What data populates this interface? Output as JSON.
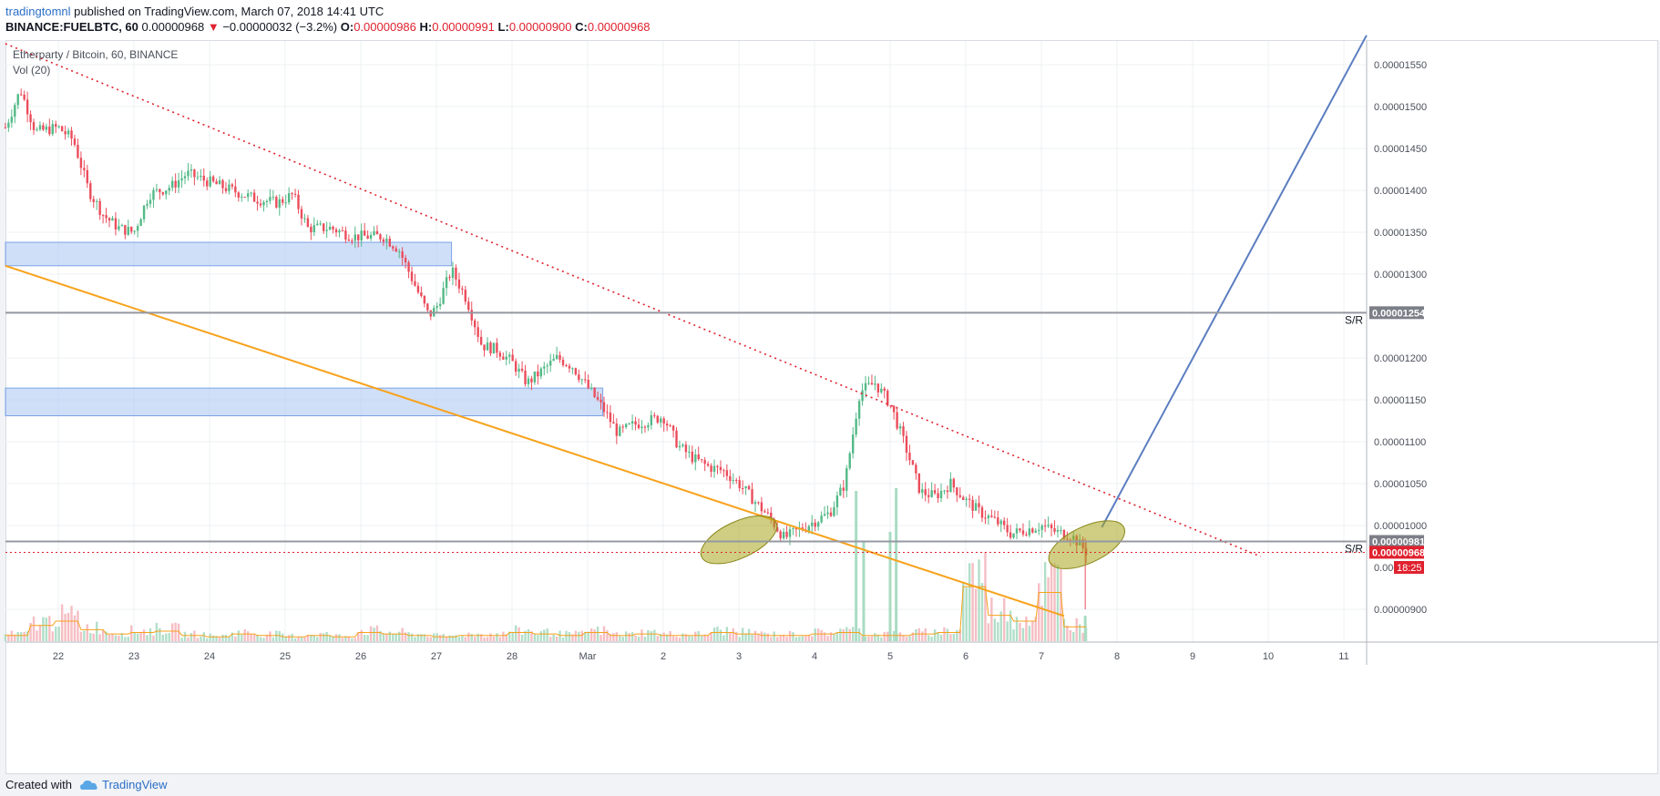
{
  "header": {
    "author": "tradingtomnl",
    "published": "published on TradingView.com, March 07, 2018 14:41 UTC",
    "symbol": "BINANCE:FUELBTC, 60",
    "price": "0.00000968",
    "arrow": "▼",
    "change": "−0.00000032 (−3.2%)",
    "o_label": "O:",
    "o_value": "0.00000986",
    "h_label": "H:",
    "h_value": "0.00000991",
    "l_label": "L:",
    "l_value": "0.00000900",
    "c_label": "C:",
    "c_value": "0.00000968"
  },
  "legend": {
    "title": "Etherparty / Bitcoin, 60, BINANCE",
    "volume": "Vol (20)"
  },
  "footer": {
    "created": "Created with",
    "brand": "TradingView"
  },
  "colors": {
    "up": "#53b987",
    "down": "#eb4d5c",
    "trend_dotted": "#e0212e",
    "trend_orange": "#f7a21b",
    "projection": "#5b7dc0",
    "zone": "#a9c5f2",
    "ellipse": "#a8a51e",
    "sr_line": "#9598a1"
  },
  "chart_data": {
    "type": "candlestick",
    "title": "Etherparty / Bitcoin, 60, BINANCE",
    "x_ticks": [
      "22",
      "23",
      "24",
      "25",
      "26",
      "27",
      "28",
      "Mar",
      "2",
      "3",
      "4",
      "5",
      "6",
      "7",
      "8",
      "9",
      "10",
      "11"
    ],
    "y_ticks": [
      "0.00001550",
      "0.00001500",
      "0.00001450",
      "0.00001400",
      "0.00001350",
      "0.00001300",
      "0.00001200",
      "0.00001150",
      "0.00001100",
      "0.00001050",
      "0.00001000",
      "0.00000900"
    ],
    "y_tick_values": [
      1550,
      1500,
      1450,
      1400,
      1350,
      1300,
      1200,
      1150,
      1100,
      1050,
      1000,
      900
    ],
    "ylim": [
      870,
      1585
    ],
    "xlim_days": [
      21.3,
      39.4
    ],
    "price_path": [
      [
        21.3,
        1475
      ],
      [
        21.5,
        1520
      ],
      [
        21.7,
        1470
      ],
      [
        22.0,
        1475
      ],
      [
        22.2,
        1460
      ],
      [
        22.4,
        1400
      ],
      [
        22.6,
        1370
      ],
      [
        22.8,
        1355
      ],
      [
        23.0,
        1350
      ],
      [
        23.2,
        1395
      ],
      [
        23.5,
        1405
      ],
      [
        23.7,
        1420
      ],
      [
        24.0,
        1410
      ],
      [
        24.3,
        1400
      ],
      [
        24.6,
        1390
      ],
      [
        24.9,
        1385
      ],
      [
        25.1,
        1395
      ],
      [
        25.3,
        1355
      ],
      [
        25.6,
        1355
      ],
      [
        25.9,
        1345
      ],
      [
        26.1,
        1345
      ],
      [
        26.3,
        1345
      ],
      [
        26.5,
        1330
      ],
      [
        26.7,
        1290
      ],
      [
        26.9,
        1250
      ],
      [
        27.0,
        1260
      ],
      [
        27.2,
        1305
      ],
      [
        27.4,
        1270
      ],
      [
        27.6,
        1215
      ],
      [
        27.8,
        1210
      ],
      [
        28.0,
        1195
      ],
      [
        28.2,
        1170
      ],
      [
        28.4,
        1185
      ],
      [
        28.6,
        1200
      ],
      [
        28.8,
        1190
      ],
      [
        29.0,
        1165
      ],
      [
        29.2,
        1140
      ],
      [
        29.4,
        1110
      ],
      [
        29.6,
        1120
      ],
      [
        29.8,
        1125
      ],
      [
        30.0,
        1130
      ],
      [
        30.2,
        1095
      ],
      [
        30.4,
        1080
      ],
      [
        30.6,
        1070
      ],
      [
        30.8,
        1065
      ],
      [
        31.0,
        1050
      ],
      [
        31.2,
        1030
      ],
      [
        31.4,
        1010
      ],
      [
        31.6,
        985
      ],
      [
        31.8,
        995
      ],
      [
        32.0,
        1005
      ],
      [
        32.2,
        1015
      ],
      [
        32.4,
        1050
      ],
      [
        32.6,
        1160
      ],
      [
        32.8,
        1170
      ],
      [
        33.0,
        1145
      ],
      [
        33.2,
        1095
      ],
      [
        33.4,
        1040
      ],
      [
        33.6,
        1035
      ],
      [
        33.8,
        1050
      ],
      [
        34.0,
        1030
      ],
      [
        34.2,
        1015
      ],
      [
        34.4,
        1005
      ],
      [
        34.6,
        990
      ],
      [
        34.8,
        995
      ],
      [
        35.0,
        1000
      ],
      [
        35.2,
        992
      ],
      [
        35.4,
        988
      ],
      [
        35.6,
        968
      ]
    ],
    "series": [
      {
        "name": "Vol (20)",
        "values_relative": [
          0.2,
          0.55,
          0.7,
          0.4,
          0.25,
          0.3,
          0.35,
          0.2,
          0.15,
          0.25,
          0.2,
          0.15,
          0.2,
          0.15,
          0.3,
          0.25,
          0.2,
          0.15,
          0.2,
          0.2,
          0.3,
          0.25,
          0.2,
          0.3,
          0.2,
          0.25,
          0.2,
          0.2,
          0.3,
          0.25,
          0.2,
          0.2,
          0.25,
          0.3,
          0.2,
          0.2,
          0.25,
          0.3,
          1.9,
          0.9,
          0.7,
          1.7,
          0.5,
          0.35,
          0.3,
          0.25,
          0.2,
          0.25,
          0.3,
          0.35,
          0.25,
          0.2
        ]
      }
    ],
    "annotations": {
      "sr_levels": [
        {
          "label": "S/R",
          "value": 1254,
          "badge": "0.00001254"
        },
        {
          "label": "S/R",
          "value": 981,
          "badge": "0.00000981"
        }
      ],
      "last_price": {
        "value": 968,
        "badge": "0.00000968"
      },
      "countdown": {
        "value": 950,
        "badge_prefix": "0.000",
        "badge": "18:25"
      },
      "zones": [
        {
          "from_day": 21.3,
          "to_day": 27.2,
          "low": 1310,
          "high": 1338
        },
        {
          "from_day": 21.3,
          "to_day": 29.2,
          "low": 1131,
          "high": 1164
        }
      ],
      "dotted_trendline": {
        "points": [
          [
            21.3,
            1575
          ],
          [
            37.9,
            963
          ]
        ]
      },
      "orange_trendline": {
        "points": [
          [
            21.3,
            1310
          ],
          [
            35.3,
            892
          ]
        ]
      },
      "projection": {
        "points": [
          [
            35.8,
            998
          ],
          [
            39.3,
            1585
          ]
        ]
      },
      "ellipses": [
        {
          "day": 31.0,
          "value": 983
        },
        {
          "day": 35.6,
          "value": 977
        }
      ]
    }
  }
}
